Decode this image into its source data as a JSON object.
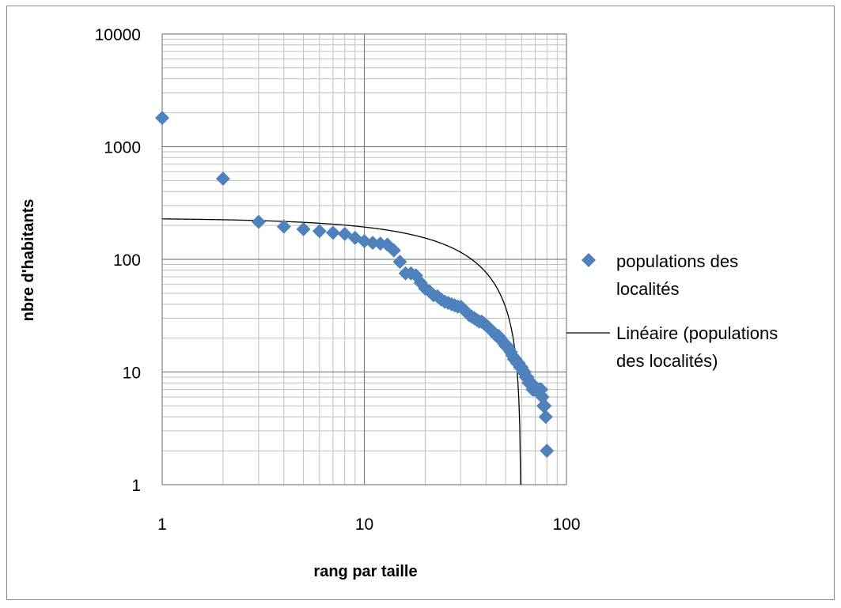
{
  "chart_data": {
    "type": "scatter",
    "title": "",
    "xlabel": "rang par taille",
    "ylabel": "nbre d'habitants",
    "xscale": "log",
    "yscale": "log",
    "xlim": [
      1,
      100
    ],
    "ylim": [
      1,
      10000
    ],
    "grid": true,
    "legend_position": "right",
    "x_ticks": [
      "1",
      "10",
      "100"
    ],
    "y_ticks": [
      "1",
      "10",
      "100",
      "1000",
      "10000"
    ],
    "series": [
      {
        "name": "populations des localités",
        "legend_lines": [
          "populations des",
          "localités"
        ],
        "marker": "diamond",
        "color": "#4F81BD",
        "x": [
          1,
          2,
          3,
          4,
          5,
          6,
          7,
          8,
          9,
          10,
          11,
          12,
          13,
          14,
          15,
          16,
          17,
          18,
          19,
          20,
          21,
          22,
          23,
          24,
          25,
          26,
          27,
          28,
          29,
          30,
          31,
          32,
          33,
          34,
          35,
          36,
          37,
          38,
          39,
          40,
          41,
          42,
          43,
          44,
          45,
          46,
          47,
          48,
          49,
          50,
          51,
          52,
          53,
          54,
          55,
          56,
          57,
          58,
          59,
          60,
          61,
          62,
          63,
          64,
          65,
          66,
          67,
          68,
          69,
          70,
          71,
          72,
          73,
          74,
          75,
          76,
          77,
          78,
          79,
          80
        ],
        "y": [
          1800,
          520,
          215,
          195,
          185,
          178,
          172,
          168,
          155,
          145,
          140,
          138,
          135,
          120,
          95,
          75,
          75,
          72,
          62,
          55,
          52,
          48,
          47,
          44,
          42,
          41,
          40,
          39,
          38,
          38,
          36,
          34,
          32,
          31,
          30,
          29,
          28,
          28,
          27,
          26,
          25,
          24,
          23,
          22,
          21,
          21,
          20,
          19,
          18,
          17,
          17,
          16,
          15,
          14,
          13,
          13,
          12,
          12,
          11,
          11,
          10,
          10,
          9,
          9,
          8,
          8,
          8,
          7,
          7,
          7,
          7,
          7,
          7,
          7,
          7,
          6,
          5,
          5,
          4,
          2
        ]
      },
      {
        "name": "Linéaire (populations des localités)",
        "legend_lines": [
          "Linéaire (populations",
          "des localités)"
        ],
        "type": "line",
        "color": "#000000",
        "trend": {
          "intercept": 232.4,
          "slope": -3.9
        }
      }
    ]
  }
}
